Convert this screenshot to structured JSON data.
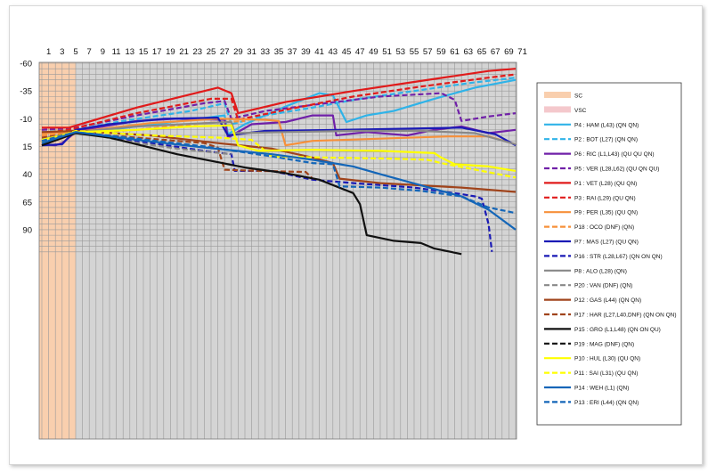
{
  "chart_data": {
    "type": "line",
    "x_ticks": [
      "1",
      "3",
      "5",
      "7",
      "9",
      "11",
      "13",
      "15",
      "17",
      "19",
      "21",
      "23",
      "25",
      "27",
      "29",
      "31",
      "33",
      "35",
      "37",
      "39",
      "41",
      "43",
      "45",
      "47",
      "49",
      "51",
      "53",
      "55",
      "57",
      "59",
      "61",
      "63",
      "65",
      "67",
      "69",
      "71"
    ],
    "y_ticks": [
      "-60",
      "-35",
      "-10",
      "15",
      "40",
      "65",
      "90"
    ],
    "xlim": [
      0,
      71
    ],
    "ylim": [
      -60,
      110
    ],
    "y_inverted": true,
    "grid": true,
    "legend_position": "right",
    "background_periods": [
      {
        "name": "SC",
        "start": 0,
        "end": 5,
        "color": "#f9cfae"
      },
      {
        "name": "VSC",
        "start": null,
        "end": null,
        "color": "#f4c8cc"
      }
    ],
    "series": [
      {
        "name": "P4 : HAM (L43) (QN QN)",
        "color": "#2fb3e8",
        "dash": false,
        "points": [
          [
            0,
            12
          ],
          [
            5,
            2
          ],
          [
            10,
            0
          ],
          [
            18,
            -6
          ],
          [
            27,
            -13
          ],
          [
            27.5,
            4
          ],
          [
            30,
            -5
          ],
          [
            36,
            -21
          ],
          [
            41,
            -33
          ],
          [
            43,
            -31
          ],
          [
            45,
            -7
          ],
          [
            48,
            -13
          ],
          [
            52,
            -17
          ],
          [
            58,
            -28
          ],
          [
            64,
            -38
          ],
          [
            70,
            -45
          ]
        ]
      },
      {
        "name": "P2 : BOT (L27) (QN QN)",
        "color": "#2fb3e8",
        "dash": true,
        "points": [
          [
            0,
            2
          ],
          [
            5,
            0
          ],
          [
            12,
            -8
          ],
          [
            22,
            -17
          ],
          [
            27,
            -24
          ],
          [
            28,
            -5
          ],
          [
            33,
            -13
          ],
          [
            40,
            -20
          ],
          [
            47,
            -28
          ],
          [
            55,
            -35
          ],
          [
            63,
            -42
          ],
          [
            70,
            -47
          ]
        ]
      },
      {
        "name": "P6 : RIC (L1,L43) (QU QU QN)",
        "color": "#7020a8",
        "dash": false,
        "points": [
          [
            0,
            13
          ],
          [
            2,
            14
          ],
          [
            3,
            12
          ],
          [
            5,
            2
          ],
          [
            8,
            -2
          ],
          [
            14,
            -8
          ],
          [
            20,
            -10
          ],
          [
            27,
            -9
          ],
          [
            27.5,
            7
          ],
          [
            31,
            -5
          ],
          [
            36,
            -7
          ],
          [
            40,
            -13
          ],
          [
            43,
            -13
          ],
          [
            43.5,
            5
          ],
          [
            48,
            2
          ],
          [
            54,
            5
          ],
          [
            58,
            0
          ],
          [
            62,
            -3
          ],
          [
            66,
            3
          ],
          [
            70,
            0
          ]
        ]
      },
      {
        "name": "P5 : VER (L28,L62) (QU QN QU)",
        "color": "#7020a8",
        "dash": true,
        "points": [
          [
            0,
            0
          ],
          [
            5,
            -2
          ],
          [
            14,
            -13
          ],
          [
            24,
            -24
          ],
          [
            27,
            -26
          ],
          [
            28,
            -10
          ],
          [
            33,
            -17
          ],
          [
            42,
            -24
          ],
          [
            50,
            -30
          ],
          [
            59,
            -33
          ],
          [
            61,
            -27
          ],
          [
            62,
            -8
          ],
          [
            66,
            -12
          ],
          [
            70,
            -15
          ]
        ]
      },
      {
        "name": "P1 : VET (L28) (QU QN)",
        "color": "#e01b1b",
        "dash": false,
        "points": [
          [
            0,
            -2
          ],
          [
            4,
            -2
          ],
          [
            14,
            -20
          ],
          [
            26,
            -38
          ],
          [
            28,
            -33
          ],
          [
            29,
            -15
          ],
          [
            36,
            -25
          ],
          [
            46,
            -35
          ],
          [
            56,
            -44
          ],
          [
            66,
            -53
          ],
          [
            70,
            -55
          ]
        ]
      },
      {
        "name": "P3 : RAI (L29) (QU QN)",
        "color": "#e01b1b",
        "dash": true,
        "points": [
          [
            0,
            3
          ],
          [
            4,
            0
          ],
          [
            14,
            -15
          ],
          [
            25,
            -28
          ],
          [
            28,
            -28
          ],
          [
            29,
            -9
          ],
          [
            36,
            -18
          ],
          [
            46,
            -30
          ],
          [
            56,
            -39
          ],
          [
            66,
            -47
          ],
          [
            70,
            -50
          ]
        ]
      },
      {
        "name": "P9 : PER (L35) (QU QN)",
        "color": "#f7903a",
        "dash": false,
        "points": [
          [
            0,
            3
          ],
          [
            5,
            2
          ],
          [
            16,
            -6
          ],
          [
            26,
            -10
          ],
          [
            33,
            -9
          ],
          [
            35,
            -8
          ],
          [
            36,
            14
          ],
          [
            40,
            10
          ],
          [
            50,
            8
          ],
          [
            60,
            6
          ],
          [
            66,
            6
          ],
          [
            70,
            13
          ]
        ]
      },
      {
        "name": "P18 : OCO (DNF) (QN)",
        "color": "#f7903a",
        "dash": true,
        "points": [
          [
            0,
            5
          ],
          [
            5,
            3
          ],
          [
            14,
            0
          ],
          [
            24,
            -6
          ],
          [
            30,
            -8
          ]
        ]
      },
      {
        "name": "P7 : MAS (L27) (QU QN)",
        "color": "#1a1ab5",
        "dash": false,
        "points": [
          [
            0,
            14
          ],
          [
            3,
            13
          ],
          [
            5,
            0
          ],
          [
            10,
            -5
          ],
          [
            18,
            -10
          ],
          [
            26,
            -11
          ],
          [
            27.5,
            5
          ],
          [
            33,
            1
          ],
          [
            44,
            0
          ],
          [
            54,
            -1
          ],
          [
            62,
            -2
          ],
          [
            67,
            4
          ],
          [
            70,
            14
          ]
        ]
      },
      {
        "name": "P16 : STR (L28,L67) (QN ON QN)",
        "color": "#1a1ab5",
        "dash": true,
        "points": [
          [
            0,
            14
          ],
          [
            5,
            1
          ],
          [
            14,
            10
          ],
          [
            24,
            19
          ],
          [
            28,
            22
          ],
          [
            28.5,
            37
          ],
          [
            34,
            37
          ],
          [
            40,
            45
          ],
          [
            46,
            48
          ],
          [
            55,
            52
          ],
          [
            62,
            58
          ],
          [
            64,
            60
          ],
          [
            65,
            62
          ],
          [
            66,
            85
          ],
          [
            66.5,
            110
          ]
        ]
      },
      {
        "name": "P8 : ALO (L28) (QN)",
        "color": "#888888",
        "dash": false,
        "points": [
          [
            0,
            8
          ],
          [
            5,
            2
          ],
          [
            14,
            -3
          ],
          [
            24,
            -6
          ],
          [
            28,
            -7
          ],
          [
            28.5,
            3
          ],
          [
            36,
            2
          ],
          [
            46,
            1
          ],
          [
            56,
            1
          ],
          [
            64,
            3
          ],
          [
            70,
            13
          ]
        ]
      },
      {
        "name": "P20 : VAN (DNF) (QN)",
        "color": "#888888",
        "dash": true,
        "points": [
          [
            0,
            12
          ],
          [
            5,
            1
          ],
          [
            12,
            10
          ],
          [
            20,
            17
          ],
          [
            28,
            22
          ]
        ]
      },
      {
        "name": "P12 : GAS (L44) (QN QN)",
        "color": "#a0441c",
        "dash": false,
        "points": [
          [
            0,
            2
          ],
          [
            5,
            1
          ],
          [
            16,
            5
          ],
          [
            26,
            12
          ],
          [
            34,
            17
          ],
          [
            40,
            25
          ],
          [
            43,
            30
          ],
          [
            44,
            44
          ],
          [
            50,
            48
          ],
          [
            56,
            50
          ],
          [
            62,
            52
          ],
          [
            70,
            56
          ]
        ]
      },
      {
        "name": "P17 : HAR (L27,L40,DNF) (QN ON QN)",
        "color": "#a0441c",
        "dash": true,
        "points": [
          [
            0,
            7
          ],
          [
            5,
            3
          ],
          [
            14,
            7
          ],
          [
            24,
            12
          ],
          [
            26,
            16
          ],
          [
            27,
            36
          ],
          [
            32,
            37
          ],
          [
            39,
            38
          ],
          [
            40,
            44
          ]
        ]
      },
      {
        "name": "P15 : GRO (L1,L48) (QN ON QU)",
        "color": "#111111",
        "dash": false,
        "points": [
          [
            0,
            14
          ],
          [
            5,
            3
          ],
          [
            10,
            7
          ],
          [
            20,
            22
          ],
          [
            30,
            34
          ],
          [
            36,
            39
          ],
          [
            41,
            45
          ],
          [
            46,
            57
          ],
          [
            47,
            67
          ],
          [
            48,
            95
          ],
          [
            52,
            100
          ],
          [
            56,
            102
          ],
          [
            58,
            107
          ],
          [
            62,
            112
          ]
        ]
      },
      {
        "name": "P19 : MAG (DNF) (QN)",
        "color": "#111111",
        "dash": true,
        "points": []
      },
      {
        "name": "P10 : HUL (L30) (QU QN)",
        "color": "#ffff00",
        "dash": false,
        "points": [
          [
            0,
            9
          ],
          [
            5,
            2
          ],
          [
            14,
            0
          ],
          [
            22,
            -3
          ],
          [
            28,
            -4
          ],
          [
            29,
            14
          ],
          [
            32,
            19
          ],
          [
            40,
            18
          ],
          [
            50,
            19
          ],
          [
            58,
            21
          ],
          [
            59,
            25
          ],
          [
            61,
            31
          ],
          [
            66,
            33
          ],
          [
            70,
            37
          ]
        ]
      },
      {
        "name": "P11 : SAI (L31) (QU QN)",
        "color": "#ffff00",
        "dash": true,
        "points": [
          [
            0,
            11
          ],
          [
            5,
            1
          ],
          [
            16,
            5
          ],
          [
            26,
            7
          ],
          [
            31,
            9
          ],
          [
            34,
            24
          ],
          [
            42,
            25
          ],
          [
            52,
            26
          ],
          [
            57,
            27
          ],
          [
            59,
            30
          ],
          [
            65,
            37
          ],
          [
            70,
            43
          ]
        ]
      },
      {
        "name": "P14 : WEH (L1) (QN)",
        "color": "#1466b8",
        "dash": false,
        "points": [
          [
            0,
            12
          ],
          [
            5,
            2
          ],
          [
            14,
            9
          ],
          [
            24,
            16
          ],
          [
            34,
            22
          ],
          [
            40,
            27
          ],
          [
            46,
            33
          ],
          [
            50,
            40
          ],
          [
            56,
            50
          ],
          [
            62,
            60
          ],
          [
            66,
            72
          ],
          [
            70,
            90
          ]
        ]
      },
      {
        "name": "P13 : ERI (L44) (QN QN)",
        "color": "#1466b8",
        "dash": true,
        "points": [
          [
            0,
            10
          ],
          [
            5,
            2
          ],
          [
            14,
            8
          ],
          [
            24,
            15
          ],
          [
            34,
            24
          ],
          [
            40,
            30
          ],
          [
            43,
            31
          ],
          [
            44,
            51
          ],
          [
            50,
            52
          ],
          [
            56,
            55
          ],
          [
            62,
            60
          ],
          [
            66,
            70
          ],
          [
            70,
            75
          ]
        ]
      }
    ]
  }
}
